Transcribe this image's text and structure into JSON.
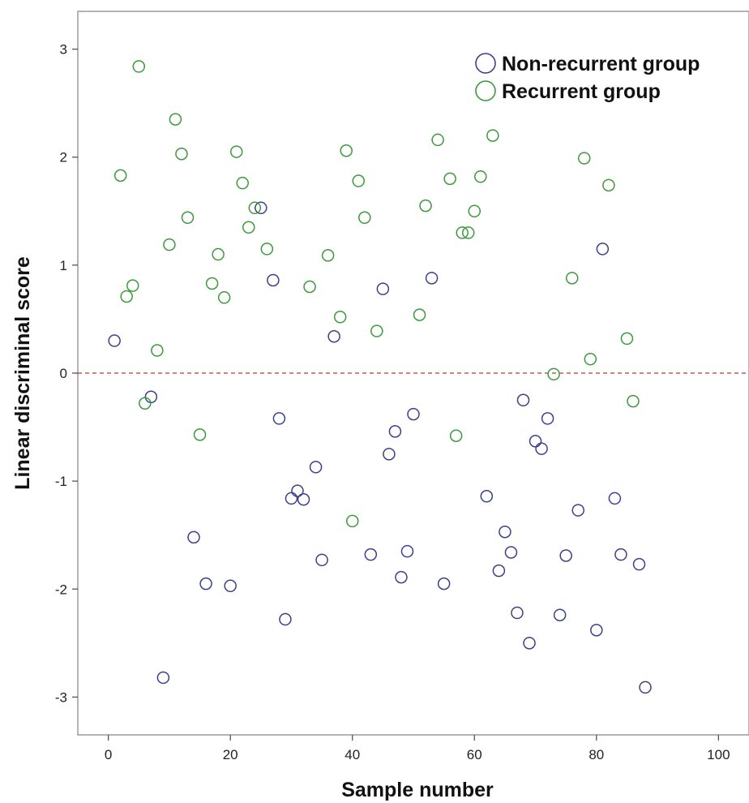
{
  "chart_data": {
    "type": "scatter",
    "title": "",
    "xlabel": "Sample number",
    "ylabel": "Linear discriminal score",
    "xlim": [
      -5,
      105
    ],
    "ylim": [
      -3.35,
      3.35
    ],
    "xticks": [
      0,
      20,
      40,
      60,
      80,
      100
    ],
    "yticks": [
      -3,
      -2,
      -1,
      0,
      1,
      2,
      3
    ],
    "xtick_labels": [
      "0",
      "20",
      "40",
      "60",
      "80",
      "100"
    ],
    "ytick_labels": [
      "-3",
      "-2",
      "-1",
      "0",
      "1",
      "2",
      "3"
    ],
    "grid": false,
    "legend_position": "top-right",
    "reference_line": {
      "y": 0,
      "style": "dashed",
      "color": "#c0392b"
    },
    "series": [
      {
        "name": "Non-recurrent group",
        "color": "#3b3f8f",
        "marker": "open-circle",
        "points": [
          [
            1,
            0.3
          ],
          [
            7,
            -0.22
          ],
          [
            9,
            -2.82
          ],
          [
            14,
            -1.52
          ],
          [
            16,
            -1.95
          ],
          [
            20,
            -1.97
          ],
          [
            25,
            1.53
          ],
          [
            27,
            0.86
          ],
          [
            28,
            -0.42
          ],
          [
            29,
            -2.28
          ],
          [
            30,
            -1.16
          ],
          [
            31,
            -1.09
          ],
          [
            32,
            -1.17
          ],
          [
            34,
            -0.87
          ],
          [
            35,
            -1.73
          ],
          [
            37,
            0.34
          ],
          [
            43,
            -1.68
          ],
          [
            45,
            0.78
          ],
          [
            46,
            -0.75
          ],
          [
            47,
            -0.54
          ],
          [
            48,
            -1.89
          ],
          [
            49,
            -1.65
          ],
          [
            50,
            -0.38
          ],
          [
            53,
            0.88
          ],
          [
            55,
            -1.95
          ],
          [
            62,
            -1.14
          ],
          [
            64,
            -1.83
          ],
          [
            65,
            -1.47
          ],
          [
            66,
            -1.66
          ],
          [
            67,
            -2.22
          ],
          [
            68,
            -0.25
          ],
          [
            69,
            -2.5
          ],
          [
            70,
            -0.63
          ],
          [
            71,
            -0.7
          ],
          [
            72,
            -0.42
          ],
          [
            74,
            -2.24
          ],
          [
            75,
            -1.69
          ],
          [
            77,
            -1.27
          ],
          [
            80,
            -2.38
          ],
          [
            81,
            1.15
          ],
          [
            83,
            -1.16
          ],
          [
            84,
            -1.68
          ],
          [
            87,
            -1.77
          ],
          [
            88,
            -2.91
          ]
        ]
      },
      {
        "name": "Recurrent group",
        "color": "#3a9a3a",
        "marker": "open-circle",
        "points": [
          [
            2,
            1.83
          ],
          [
            3,
            0.71
          ],
          [
            4,
            0.81
          ],
          [
            5,
            2.84
          ],
          [
            6,
            -0.28
          ],
          [
            8,
            0.21
          ],
          [
            10,
            1.19
          ],
          [
            11,
            2.35
          ],
          [
            12,
            2.03
          ],
          [
            13,
            1.44
          ],
          [
            15,
            -0.57
          ],
          [
            17,
            0.83
          ],
          [
            18,
            1.1
          ],
          [
            19,
            0.7
          ],
          [
            21,
            2.05
          ],
          [
            22,
            1.76
          ],
          [
            23,
            1.35
          ],
          [
            24,
            1.53
          ],
          [
            26,
            1.15
          ],
          [
            33,
            0.8
          ],
          [
            36,
            1.09
          ],
          [
            38,
            0.52
          ],
          [
            39,
            2.06
          ],
          [
            40,
            -1.37
          ],
          [
            41,
            1.78
          ],
          [
            42,
            1.44
          ],
          [
            44,
            0.39
          ],
          [
            51,
            0.54
          ],
          [
            52,
            1.55
          ],
          [
            54,
            2.16
          ],
          [
            56,
            1.8
          ],
          [
            57,
            -0.58
          ],
          [
            58,
            1.3
          ],
          [
            59,
            1.3
          ],
          [
            60,
            1.5
          ],
          [
            61,
            1.82
          ],
          [
            63,
            2.2
          ],
          [
            73,
            -0.01
          ],
          [
            76,
            0.88
          ],
          [
            78,
            1.99
          ],
          [
            79,
            0.13
          ],
          [
            82,
            1.74
          ],
          [
            85,
            0.32
          ],
          [
            86,
            -0.26
          ]
        ]
      }
    ]
  }
}
